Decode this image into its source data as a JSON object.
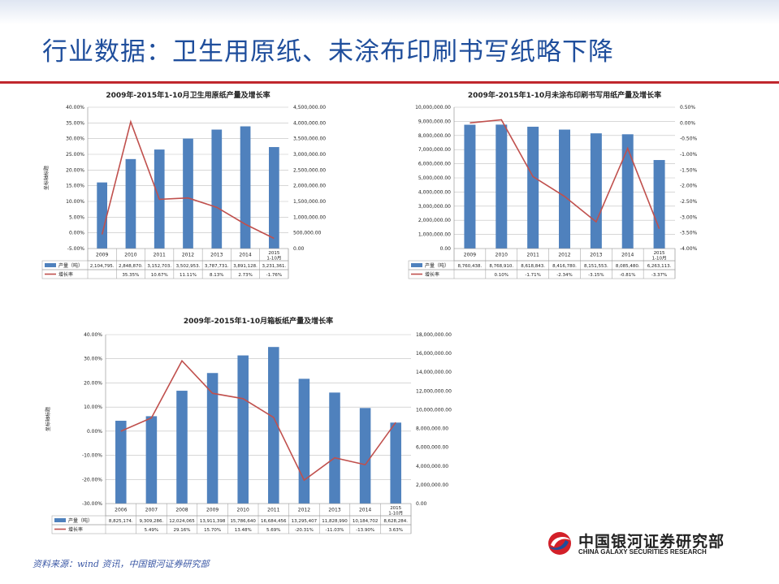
{
  "slide": {
    "title": "行业数据：卫生用原纸、未涂布印刷书写纸略下降",
    "source": "资料来源：wind 资讯，中国银河证券研究部",
    "logo_cn": "中国银河证券研究部",
    "logo_en": "CHINA GALAXY SECURITIES RESEARCH",
    "logo_icon": "galaxy-logo-icon"
  },
  "colors": {
    "bar": "#4f81bd",
    "line": "#c0504d",
    "title": "#1f4e9c",
    "rule": "#c0272d"
  },
  "chart_data": [
    {
      "type": "bar+line",
      "title": "2009年-2015年1-10月卫生用原纸产量及增长率",
      "ylabel": "坐标轴标题",
      "categories": [
        "2009",
        "2010",
        "2011",
        "2012",
        "2013",
        "2014",
        "2015 1-10月"
      ],
      "series": [
        {
          "name": "产量（吨）",
          "type": "bar",
          "axis": "right",
          "values": [
            2104795,
            2848870,
            3152703,
            3502953,
            3787731,
            3891128,
            3231361
          ],
          "table": [
            "2,104,795.",
            "2,848,870.",
            "3,152,703.",
            "3,502,953.",
            "3,787,731.",
            "3,891,128.",
            "3,231,361."
          ]
        },
        {
          "name": "增长率",
          "type": "line",
          "axis": "left",
          "values": [
            -0.5,
            35.35,
            10.67,
            11.11,
            8.13,
            2.73,
            -1.76
          ],
          "table": [
            "",
            "35.35%",
            "10.67%",
            "11.11%",
            "8.13%",
            "2.73%",
            "-1.76%"
          ]
        }
      ],
      "left_ticks": [
        "40.00%",
        "35.00%",
        "30.00%",
        "25.00%",
        "20.00%",
        "15.00%",
        "10.00%",
        "5.00%",
        "0.00%",
        "-5.00%"
      ],
      "left_range": [
        -5,
        40
      ],
      "right_ticks": [
        "4,500,000.00",
        "4,000,000.00",
        "3,500,000.00",
        "3,000,000.00",
        "2,500,000.00",
        "2,000,000.00",
        "1,500,000.00",
        "1,000,000.00",
        "500,000.00",
        "0.00"
      ],
      "right_range": [
        0,
        4500000
      ]
    },
    {
      "type": "bar+line",
      "title": "2009年-2015年1-10月未涂布印刷书写用纸产量及增长率",
      "ylabel": "",
      "categories": [
        "2009",
        "2010",
        "2011",
        "2012",
        "2013",
        "2014",
        "2015 1-10月"
      ],
      "series": [
        {
          "name": "产量（吨）",
          "type": "bar",
          "axis": "left",
          "values": [
            8760438,
            8768910,
            8618843,
            8416780,
            8151553,
            8085480,
            6263113
          ],
          "table": [
            "8,760,438.",
            "8,768,910.",
            "8,618,843.",
            "8,416,780.",
            "8,151,553.",
            "8,085,480.",
            "6,263,113."
          ]
        },
        {
          "name": "增长率",
          "type": "line",
          "axis": "right",
          "values": [
            0.0,
            0.1,
            -1.71,
            -2.34,
            -3.15,
            -0.81,
            -3.37
          ],
          "table": [
            "",
            "0.10%",
            "-1.71%",
            "-2.34%",
            "-3.15%",
            "-0.81%",
            "-3.37%"
          ]
        }
      ],
      "left_ticks": [
        "10,000,000.00",
        "9,000,000.00",
        "8,000,000.00",
        "7,000,000.00",
        "6,000,000.00",
        "5,000,000.00",
        "4,000,000.00",
        "3,000,000.00",
        "2,000,000.00",
        "1,000,000.00",
        "0.00"
      ],
      "left_range": [
        0,
        10000000
      ],
      "right_ticks": [
        "0.50%",
        "0.00%",
        "-0.50%",
        "-1.00%",
        "-1.50%",
        "-2.00%",
        "-2.50%",
        "-3.00%",
        "-3.50%",
        "-4.00%"
      ],
      "right_range": [
        -4,
        0.5
      ]
    },
    {
      "type": "bar+line",
      "title": "2009年-2015年1-10月箱板纸产量及增长率",
      "ylabel": "坐标轴标题",
      "categories": [
        "2006",
        "2007",
        "2008",
        "2009",
        "2010",
        "2011",
        "2012",
        "2013",
        "2014",
        "2015 1-10月"
      ],
      "series": [
        {
          "name": "产量（吨）",
          "type": "bar",
          "axis": "right",
          "values": [
            8825174,
            9309286,
            12024065,
            13911398,
            15786640,
            16684456,
            13295407,
            11828990,
            10184702,
            8628284
          ],
          "table": [
            "8,825,174.",
            "9,309,286.",
            "12,024,065",
            "13,911,398",
            "15,786,640",
            "16,684,456",
            "13,295,407",
            "11,828,990",
            "10,184,702",
            "8,628,284."
          ]
        },
        {
          "name": "增长率",
          "type": "line",
          "axis": "left",
          "values": [
            0.0,
            5.49,
            29.16,
            15.7,
            13.48,
            5.69,
            -20.31,
            -11.03,
            -13.9,
            3.63
          ],
          "table": [
            "",
            "5.49%",
            "29.16%",
            "15.70%",
            "13.48%",
            "5.69%",
            "-20.31%",
            "-11.03%",
            "-13.90%",
            "3.63%"
          ]
        }
      ],
      "left_ticks": [
        "40.00%",
        "30.00%",
        "20.00%",
        "10.00%",
        "0.00%",
        "-10.00%",
        "-20.00%",
        "-30.00%"
      ],
      "left_range": [
        -30,
        40
      ],
      "right_ticks": [
        "18,000,000.00",
        "16,000,000.00",
        "14,000,000.00",
        "12,000,000.00",
        "10,000,000.00",
        "8,000,000.00",
        "6,000,000.00",
        "4,000,000.00",
        "2,000,000.00",
        "0.00"
      ],
      "right_range": [
        0,
        18000000
      ]
    }
  ]
}
